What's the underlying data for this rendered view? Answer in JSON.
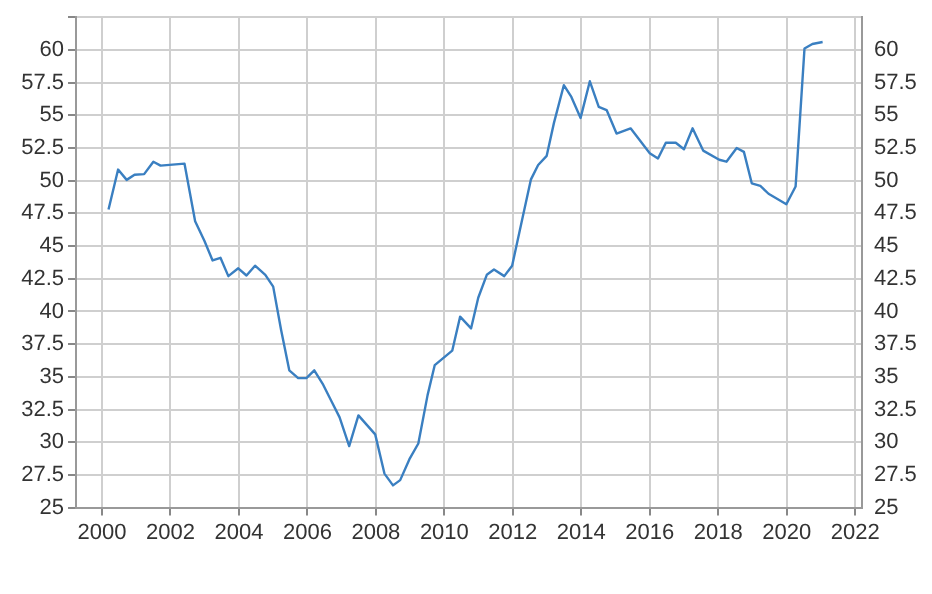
{
  "chart_data": {
    "type": "line",
    "x": [
      2000.19,
      2000.47,
      2000.72,
      2000.95,
      2001.23,
      2001.5,
      2001.71,
      2002.41,
      2002.72,
      2002.99,
      2003.23,
      2003.46,
      2003.69,
      2003.98,
      2004.22,
      2004.47,
      2004.77,
      2005.0,
      2005.23,
      2005.47,
      2005.73,
      2005.97,
      2006.2,
      2006.46,
      2006.71,
      2006.94,
      2007.22,
      2007.49,
      2007.98,
      2008.25,
      2008.5,
      2008.71,
      2008.98,
      2009.24,
      2009.51,
      2009.72,
      2010.23,
      2010.46,
      2010.78,
      2010.99,
      2011.24,
      2011.45,
      2011.75,
      2011.98,
      2012.27,
      2012.53,
      2012.74,
      2012.99,
      2013.2,
      2013.49,
      2013.71,
      2013.98,
      2014.25,
      2014.51,
      2014.74,
      2015.03,
      2015.44,
      2016.0,
      2016.24,
      2016.47,
      2016.76,
      2017.0,
      2017.25,
      2017.56,
      2018.03,
      2018.24,
      2018.54,
      2018.75,
      2018.98,
      2019.23,
      2019.47,
      2019.99,
      2020.26,
      2020.52,
      2020.75,
      2021.05
    ],
    "series": [
      {
        "color": "#3a7fc1",
        "values": [
          47.8,
          50.85,
          50.06,
          50.45,
          50.5,
          51.45,
          51.15,
          51.3,
          46.9,
          45.4,
          43.9,
          44.1,
          42.7,
          43.3,
          42.75,
          43.5,
          42.8,
          41.9,
          38.6,
          35.5,
          34.9,
          34.9,
          35.5,
          34.4,
          33.1,
          31.9,
          29.7,
          32.05,
          30.6,
          27.6,
          26.7,
          27.1,
          28.7,
          29.9,
          33.6,
          35.9,
          37.0,
          39.6,
          38.7,
          41.05,
          42.8,
          43.2,
          42.7,
          43.5,
          47.0,
          50.1,
          51.2,
          51.9,
          54.4,
          57.3,
          56.4,
          54.8,
          57.6,
          55.65,
          55.4,
          53.6,
          54.0,
          52.1,
          51.7,
          52.9,
          52.9,
          52.4,
          54.0,
          52.3,
          51.6,
          51.45,
          52.5,
          52.2,
          49.8,
          49.6,
          49.0,
          48.2,
          49.55,
          60.1,
          60.45,
          60.6
        ]
      }
    ],
    "xlim": [
      1999.24,
      2022.2
    ],
    "xticks": [
      2000,
      2002,
      2004,
      2006,
      2008,
      2010,
      2012,
      2014,
      2016,
      2018,
      2020,
      2022
    ],
    "ylim": [
      25,
      62.5
    ],
    "yticks": [
      25,
      27.5,
      30,
      32.5,
      35,
      37.5,
      40,
      42.5,
      45,
      47.5,
      50,
      52.5,
      55,
      57.5,
      60,
      {
        "value": 62.5,
        "label": null
      }
    ],
    "y2lim": [
      25,
      62.5
    ],
    "y2ticks": [
      25,
      27.5,
      30,
      32.5,
      35,
      37.5,
      40,
      42.5,
      45,
      47.5,
      50,
      52.5,
      55,
      57.5,
      60
    ],
    "grid": true,
    "marker": "none",
    "line_style": "solid"
  }
}
